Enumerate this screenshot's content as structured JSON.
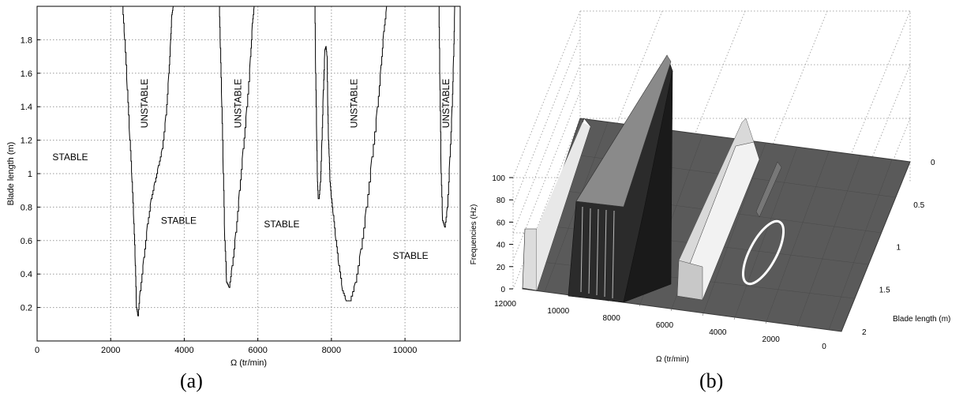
{
  "chart_data": [
    {
      "type": "line",
      "panel_caption": "(a)",
      "xlabel": "Ω (tr/min)",
      "ylabel": "Blade length (m)",
      "xlim": [
        0,
        11500
      ],
      "ylim": [
        0,
        2.0
      ],
      "xticks": [
        0,
        2000,
        4000,
        6000,
        8000,
        10000
      ],
      "xtick_labels": [
        "0",
        "2000",
        "4000",
        "6000",
        "8000",
        "10000"
      ],
      "yticks": [
        0.2,
        0.4,
        0.6,
        0.8,
        1.0,
        1.2,
        1.4,
        1.6,
        1.8
      ],
      "ytick_labels": [
        "0.2",
        "0.4",
        "0.6",
        "0.8",
        "1",
        "1.2",
        "1.4",
        "1.6",
        "1.8"
      ],
      "grid": true,
      "series": [
        {
          "x": [
            2320,
            2380,
            2450,
            2520,
            2580,
            2630,
            2670,
            2700,
            2740,
            2800,
            2900,
            3000,
            3100,
            3200,
            3300,
            3400,
            3500,
            3580,
            3630,
            3660,
            3700
          ],
          "y": [
            2.0,
            1.8,
            1.5,
            1.2,
            0.95,
            0.7,
            0.45,
            0.2,
            0.15,
            0.3,
            0.5,
            0.7,
            0.85,
            0.95,
            1.05,
            1.15,
            1.35,
            1.6,
            1.8,
            1.95,
            2.0
          ]
        },
        {
          "x": [
            4950,
            4980,
            5020,
            5060,
            5100,
            5150,
            5220,
            5300,
            5400,
            5500,
            5600,
            5700,
            5800,
            5850,
            5900
          ],
          "y": [
            2.0,
            1.75,
            1.4,
            1.0,
            0.6,
            0.35,
            0.32,
            0.45,
            0.65,
            0.9,
            1.15,
            1.4,
            1.7,
            1.9,
            2.0
          ]
        },
        {
          "x": [
            7550,
            7570,
            7600,
            7620,
            7640,
            7660,
            7700,
            7740,
            7780,
            7820,
            7850,
            7880
          ],
          "y": [
            2.0,
            1.6,
            1.2,
            0.95,
            0.85,
            0.85,
            0.95,
            1.2,
            1.5,
            1.74,
            1.76,
            1.7
          ]
        },
        {
          "x": [
            7880,
            7900,
            7920,
            7940,
            7960,
            8000,
            8050,
            8120,
            8200,
            8300,
            8400,
            8500,
            8650,
            8800,
            8950,
            9100,
            9250,
            9350,
            9420,
            9500
          ],
          "y": [
            1.7,
            1.4,
            1.2,
            1.1,
            0.95,
            0.85,
            0.75,
            0.6,
            0.45,
            0.3,
            0.24,
            0.24,
            0.35,
            0.55,
            0.8,
            1.1,
            1.4,
            1.65,
            1.85,
            2.0
          ]
        },
        {
          "x": [
            10920,
            10950,
            10980,
            11020,
            11080,
            11150,
            11220,
            11280,
            11320,
            11350
          ],
          "y": [
            2.0,
            1.5,
            1.0,
            0.72,
            0.68,
            0.8,
            1.1,
            1.4,
            1.7,
            2.0
          ]
        }
      ],
      "annotations": [
        {
          "text": "STABLE",
          "x": 900,
          "y": 1.08,
          "rotate": 0
        },
        {
          "text": "STABLE",
          "x": 3850,
          "y": 0.7,
          "rotate": 0
        },
        {
          "text": "STABLE",
          "x": 6650,
          "y": 0.68,
          "rotate": 0
        },
        {
          "text": "STABLE",
          "x": 10150,
          "y": 0.49,
          "rotate": 0
        },
        {
          "text": "UNSTABLE",
          "x": 3000,
          "y": 1.42,
          "rotate": -90
        },
        {
          "text": "UNSTABLE",
          "x": 5550,
          "y": 1.42,
          "rotate": -90
        },
        {
          "text": "UNSTABLE",
          "x": 8700,
          "y": 1.42,
          "rotate": -90
        },
        {
          "text": "UNSTABLE",
          "x": 11200,
          "y": 1.42,
          "rotate": -90
        }
      ]
    },
    {
      "type": "surface",
      "panel_caption": "(b)",
      "xlabel": "Ω (tr/min)",
      "ylabel": "Blade length (m)",
      "zlabel": "Frequencies (Hz)",
      "xlim": [
        12000,
        0
      ],
      "ylim": [
        0,
        2
      ],
      "zlim": [
        0,
        100
      ],
      "xticks": [
        12000,
        10000,
        8000,
        6000,
        4000,
        2000,
        0
      ],
      "xtick_labels": [
        "12000",
        "10000",
        "8000",
        "6000",
        "4000",
        "2000",
        "0"
      ],
      "yticks": [
        0,
        0.5,
        1,
        1.5,
        2
      ],
      "ytick_labels": [
        "0",
        "0.5",
        "1",
        "1.5",
        "2"
      ],
      "zticks": [
        0,
        20,
        40,
        60,
        80,
        100
      ],
      "ztick_labels": [
        "0",
        "20",
        "40",
        "60",
        "80",
        "100"
      ],
      "grid": true,
      "unstable_ridges": [
        {
          "omega_range": [
            11400,
            10900
          ],
          "blade_length_range": [
            0.7,
            2.0
          ],
          "frequency": 55
        },
        {
          "omega_range": [
            9300,
            7600
          ],
          "blade_length_range": [
            0.25,
            2.0
          ],
          "frequency": 90
        },
        {
          "omega_range": [
            5900,
            5000
          ],
          "blade_length_range": [
            0.3,
            2.0
          ],
          "frequency": 35
        },
        {
          "omega_range": [
            3700,
            2350
          ],
          "blade_length_range": [
            0.15,
            2.0
          ],
          "frequency": 30
        }
      ],
      "highlight_ellipse_color": "#ffffff",
      "surface_color": "#5a5a5a"
    }
  ]
}
